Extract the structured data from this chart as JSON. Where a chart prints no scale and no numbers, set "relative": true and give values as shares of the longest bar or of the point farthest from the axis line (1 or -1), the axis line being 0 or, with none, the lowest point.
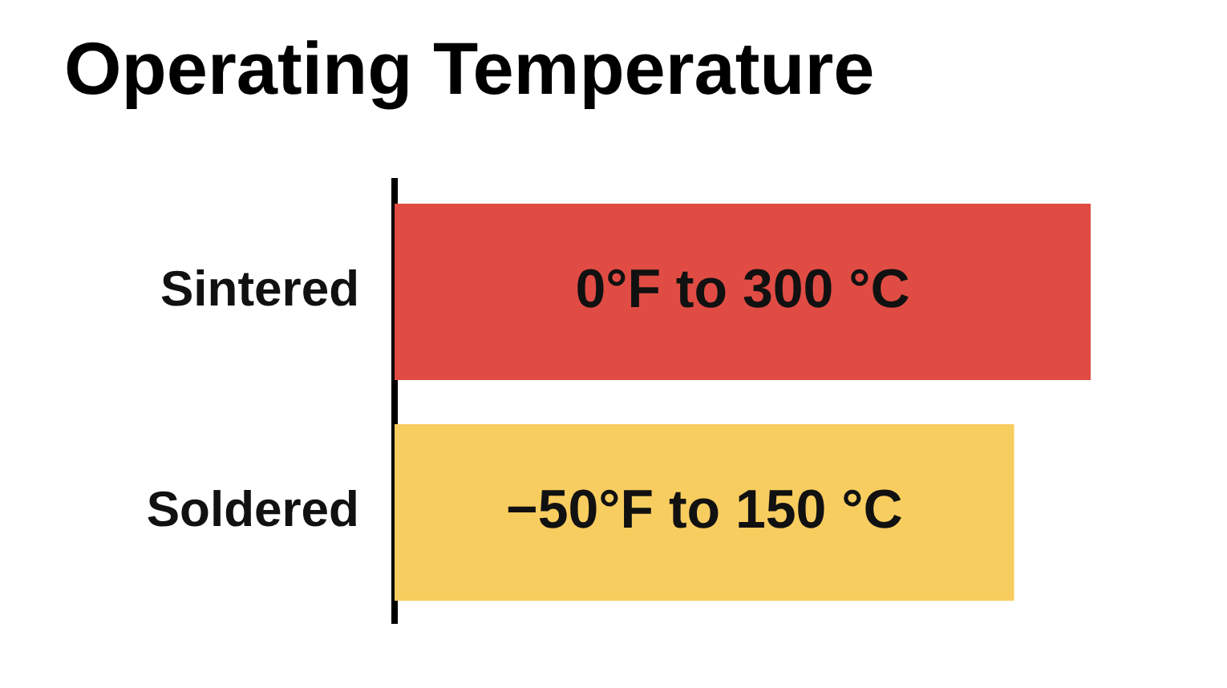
{
  "chart_data": {
    "type": "bar",
    "orientation": "horizontal",
    "relative": true,
    "title": "Operating Temperature",
    "categories": [
      "Sintered",
      "Soldered"
    ],
    "values": [
      1,
      0.89
    ],
    "colors": [
      "#e04c43",
      "#f8cd5f"
    ],
    "annotations": [
      "0°F to 300 °C",
      "−50°F to 150 °C"
    ],
    "legend": false
  }
}
